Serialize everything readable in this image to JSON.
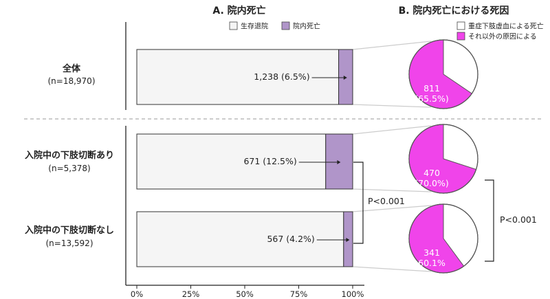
{
  "chart_data": [
    {
      "type": "bar",
      "title": "A. 院内死亡",
      "legend": [
        {
          "label": "生存退院",
          "color": "#f5f5f5"
        },
        {
          "label": "院内死亡",
          "color": "#b095c9"
        }
      ],
      "xlim": [
        0,
        100
      ],
      "x_ticks": [
        "0%",
        "25%",
        "50%",
        "75%",
        "100%"
      ],
      "groups": [
        {
          "name": "全体",
          "n": "(n=18,970)",
          "death_pct": 6.5,
          "label": "1,238 (6.5%)"
        },
        {
          "name": "入院中の下肢切断あり",
          "n": "(n=5,378)",
          "death_pct": 12.5,
          "label": "671 (12.5%)"
        },
        {
          "name": "入院中の下肢切断なし",
          "n": "(n=13,592)",
          "death_pct": 4.2,
          "label": "567 (4.2%)"
        }
      ],
      "comparison_label": "P<0.001"
    },
    {
      "type": "pie",
      "title": "B. 院内死亡における死因",
      "legend": [
        {
          "label": "重症下肢虚血による死亡",
          "color": "#ffffff"
        },
        {
          "label": "それ以外の原因による",
          "color": "#f044ea"
        }
      ],
      "pies": [
        {
          "other_pct": 65.5,
          "label_line1": "811",
          "label_line2": "(65.5%)"
        },
        {
          "other_pct": 70.0,
          "label_line1": "470",
          "label_line2": "(70.0%)"
        },
        {
          "other_pct": 60.1,
          "label_line1": "341",
          "label_line2": "60.1%"
        }
      ],
      "comparison_label": "P<0.001"
    }
  ],
  "colors": {
    "survive": "#f5f5f5",
    "death": "#b095c9",
    "other": "#f044ea",
    "cli": "#ffffff",
    "connector": "#cccccc"
  }
}
